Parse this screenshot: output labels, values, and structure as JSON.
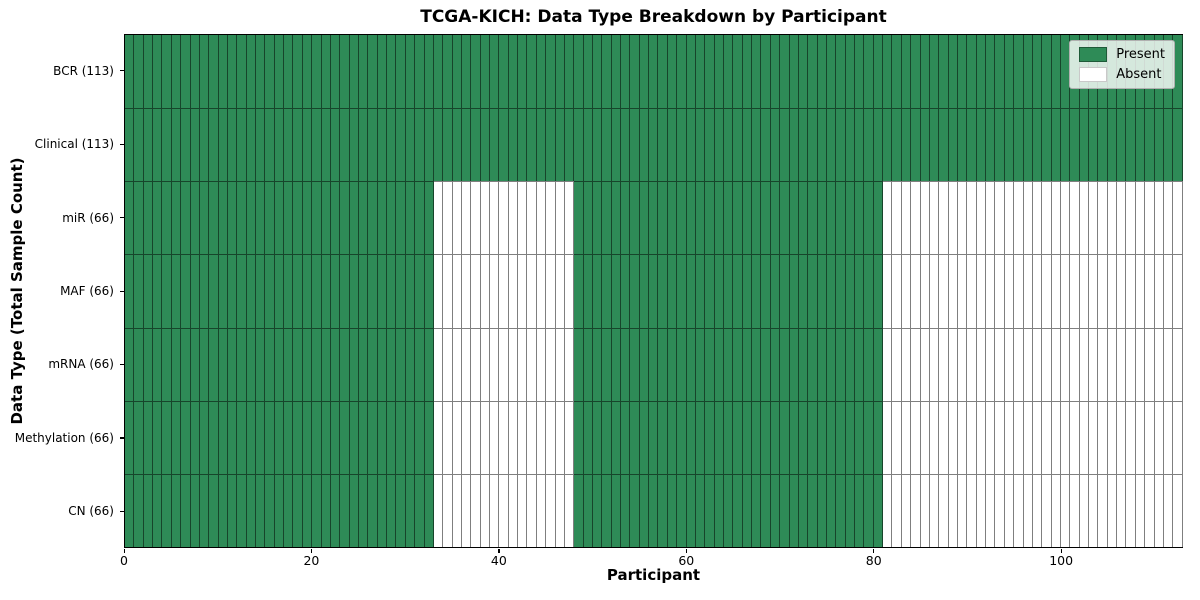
{
  "chart_data": {
    "type": "heatmap",
    "title": "TCGA-KICH: Data Type Breakdown by Participant",
    "xlabel": "Participant",
    "ylabel": "Data Type (Total Sample Count)",
    "n_participants": 113,
    "x_range": [
      0,
      113
    ],
    "x_ticks": [
      0,
      20,
      40,
      60,
      80,
      100
    ],
    "grid": true,
    "legend_position": "upper right",
    "legend": [
      {
        "label": "Present",
        "color": "#2e8b57"
      },
      {
        "label": "Absent",
        "color": "#ffffff"
      }
    ],
    "colors": {
      "present": "#2e8b57",
      "absent": "#ffffff",
      "grid_line": "rgba(0,0,0,0.5)",
      "spine": "#000000"
    },
    "rows": [
      {
        "name": "BCR",
        "label": "BCR (113)",
        "total_samples": 113,
        "present_segments": [
          [
            0,
            113
          ]
        ]
      },
      {
        "name": "Clinical",
        "label": "Clinical (113)",
        "total_samples": 113,
        "present_segments": [
          [
            0,
            113
          ]
        ]
      },
      {
        "name": "miR",
        "label": "miR (66)",
        "total_samples": 66,
        "present_segments": [
          [
            0,
            33
          ],
          [
            48,
            81
          ]
        ]
      },
      {
        "name": "MAF",
        "label": "MAF (66)",
        "total_samples": 66,
        "present_segments": [
          [
            0,
            33
          ],
          [
            48,
            81
          ]
        ]
      },
      {
        "name": "mRNA",
        "label": "mRNA (66)",
        "total_samples": 66,
        "present_segments": [
          [
            0,
            33
          ],
          [
            48,
            81
          ]
        ]
      },
      {
        "name": "Methylation",
        "label": "Methylation (66)",
        "total_samples": 66,
        "present_segments": [
          [
            0,
            33
          ],
          [
            48,
            81
          ]
        ]
      },
      {
        "name": "CN",
        "label": "CN (66)",
        "total_samples": 66,
        "present_segments": [
          [
            0,
            33
          ],
          [
            48,
            81
          ]
        ]
      }
    ]
  }
}
